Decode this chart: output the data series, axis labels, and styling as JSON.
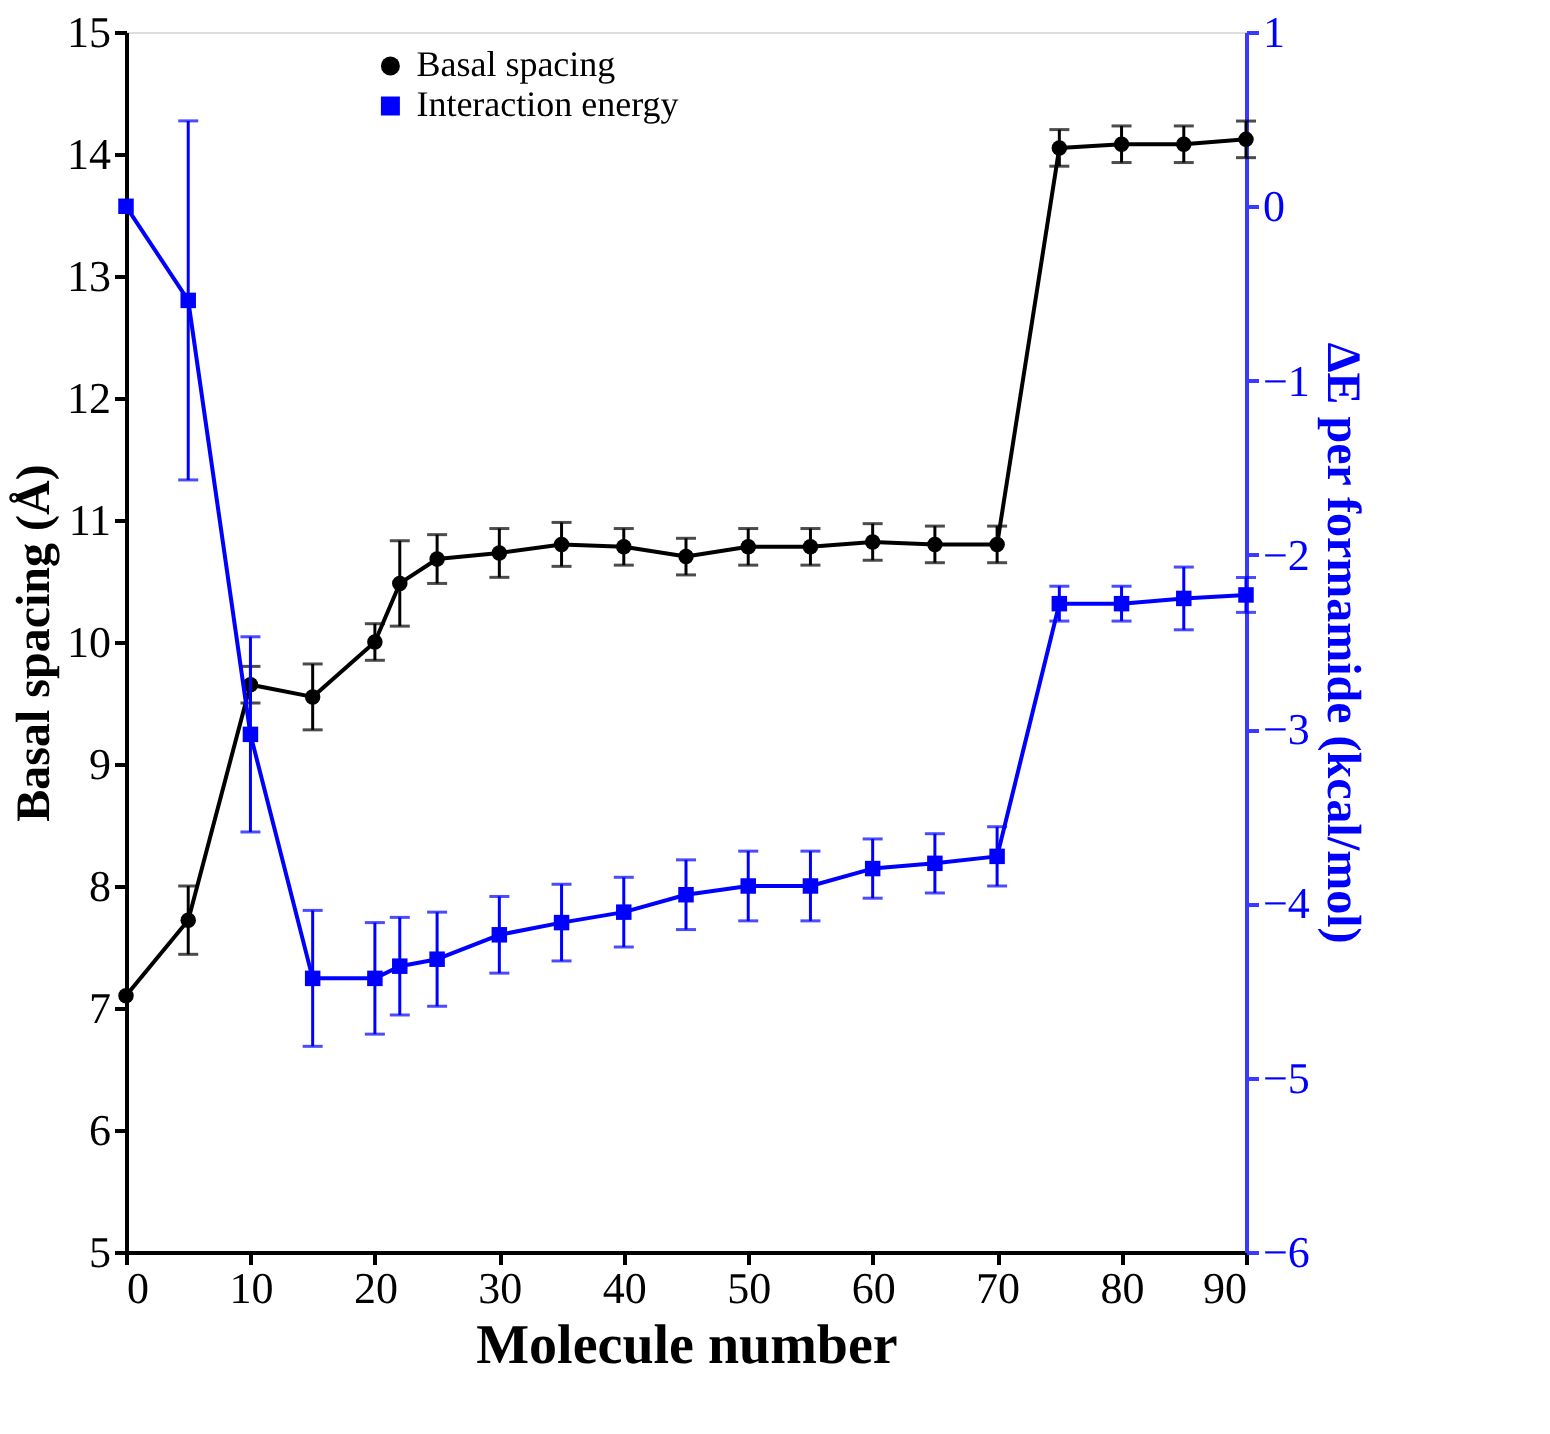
{
  "chart_data": {
    "type": "line",
    "xlabel": "Molecule number",
    "ylabel": "Basal spacing (Å)",
    "y2label": "ΔE per formamide (kcal/mol)",
    "x": [
      0,
      5,
      10,
      15,
      20,
      22,
      25,
      30,
      35,
      40,
      45,
      50,
      55,
      60,
      65,
      70,
      75,
      80,
      85,
      90
    ],
    "xlim": [
      0,
      90
    ],
    "xticks": [
      0,
      10,
      20,
      30,
      40,
      50,
      60,
      70,
      80,
      90
    ],
    "ylim": [
      5,
      15
    ],
    "yticks": [
      5,
      6,
      7,
      8,
      9,
      10,
      11,
      12,
      13,
      14,
      15
    ],
    "y2lim": [
      -6,
      1
    ],
    "y2ticks": [
      -6,
      -5,
      -4,
      -3,
      -2,
      -1,
      0,
      1
    ],
    "grid": false,
    "legend": "top",
    "line_style": "solid",
    "series": [
      {
        "name": "Basal spacing",
        "color": "#000000",
        "marker": "circle",
        "values": [
          7.1,
          7.72,
          9.65,
          9.55,
          10.0,
          10.48,
          10.68,
          10.73,
          10.8,
          10.78,
          10.7,
          10.78,
          10.78,
          10.82,
          10.8,
          10.8,
          14.05,
          14.08,
          14.08,
          14.12
        ],
        "errors": [
          null,
          0.28,
          0.15,
          0.27,
          0.15,
          0.35,
          0.2,
          0.2,
          0.18,
          0.15,
          0.15,
          0.15,
          0.15,
          0.15,
          0.15,
          0.15,
          0.15,
          0.15,
          0.15,
          0.15
        ]
      },
      {
        "name": "Interaction energy",
        "color": "#0000ff",
        "marker": "square",
        "axis": "y2",
        "values": [
          0.0,
          -0.54,
          -3.03,
          -4.43,
          -4.43,
          -4.36,
          -4.32,
          -4.18,
          -4.11,
          -4.05,
          -3.95,
          -3.9,
          -3.9,
          -3.8,
          -3.77,
          -3.73,
          -2.28,
          -2.28,
          -2.25,
          -2.23
        ],
        "errors": [
          null,
          1.03,
          0.56,
          0.39,
          0.32,
          0.28,
          0.27,
          0.22,
          0.22,
          0.2,
          0.2,
          0.2,
          0.2,
          0.17,
          0.17,
          0.17,
          0.1,
          0.1,
          0.18,
          0.1
        ]
      }
    ]
  }
}
